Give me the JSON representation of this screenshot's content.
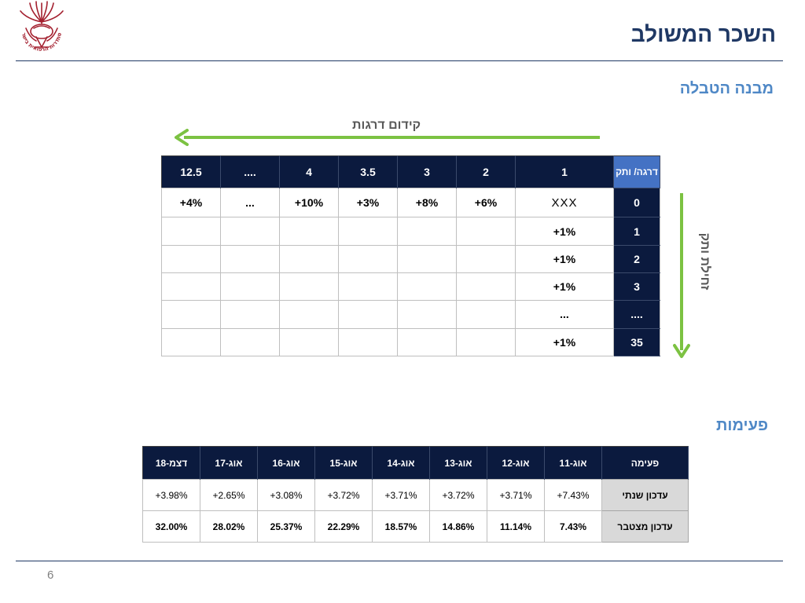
{
  "slide": {
    "title": "השכר המשולב",
    "page_number": "6"
  },
  "logo": {
    "text": "ההסתדרות הרפואית בישראל"
  },
  "structure": {
    "section_title": "מבנה הטבלה",
    "arrow_horizontal_label": "קידום דרגות",
    "arrow_vertical_label": "זחילת ותק",
    "corner_label": "דרגה/ ותק",
    "grade_headers": [
      "12.5",
      "....",
      "4",
      "3.5",
      "3",
      "2",
      "1"
    ],
    "rows": [
      {
        "seniority": "0",
        "cells": [
          "+4%",
          "...",
          "+10%",
          "+3%",
          "+8%",
          "+6%",
          "XXX"
        ]
      },
      {
        "seniority": "1",
        "cells": [
          "",
          "",
          "",
          "",
          "",
          "",
          "+1%"
        ]
      },
      {
        "seniority": "2",
        "cells": [
          "",
          "",
          "",
          "",
          "",
          "",
          "+1%"
        ]
      },
      {
        "seniority": "3",
        "cells": [
          "",
          "",
          "",
          "",
          "",
          "",
          "+1%"
        ]
      },
      {
        "seniority": "....",
        "cells": [
          "",
          "",
          "",
          "",
          "",
          "",
          "..."
        ]
      },
      {
        "seniority": "35",
        "cells": [
          "",
          "",
          "",
          "",
          "",
          "",
          "+1%"
        ]
      }
    ]
  },
  "steps": {
    "section_title": "פעימות",
    "header_label": "פעימה",
    "periods": [
      "דצמ-18",
      "אוג-17",
      "אוג-16",
      "אוג-15",
      "אוג-14",
      "אוג-13",
      "אוג-12",
      "אוג-11"
    ],
    "annual_label": "עדכון שנתי",
    "annual": [
      "+3.98%",
      "+2.65%",
      "+3.08%",
      "+3.72%",
      "+3.71%",
      "+3.72%",
      "+3.71%",
      "+7.43%"
    ],
    "cumulative_label": "עדכון מצטבר",
    "cumulative": [
      "32.00%",
      "28.02%",
      "25.37%",
      "22.29%",
      "18.57%",
      "14.86%",
      "11.14%",
      "7.43%"
    ]
  },
  "colors": {
    "title": "#1f3864",
    "section": "#4f88c6",
    "header_bg": "#0b1a3e",
    "corner_bg": "#4472c4",
    "arrow": "#7cc242",
    "logo": "#a31f2e"
  }
}
